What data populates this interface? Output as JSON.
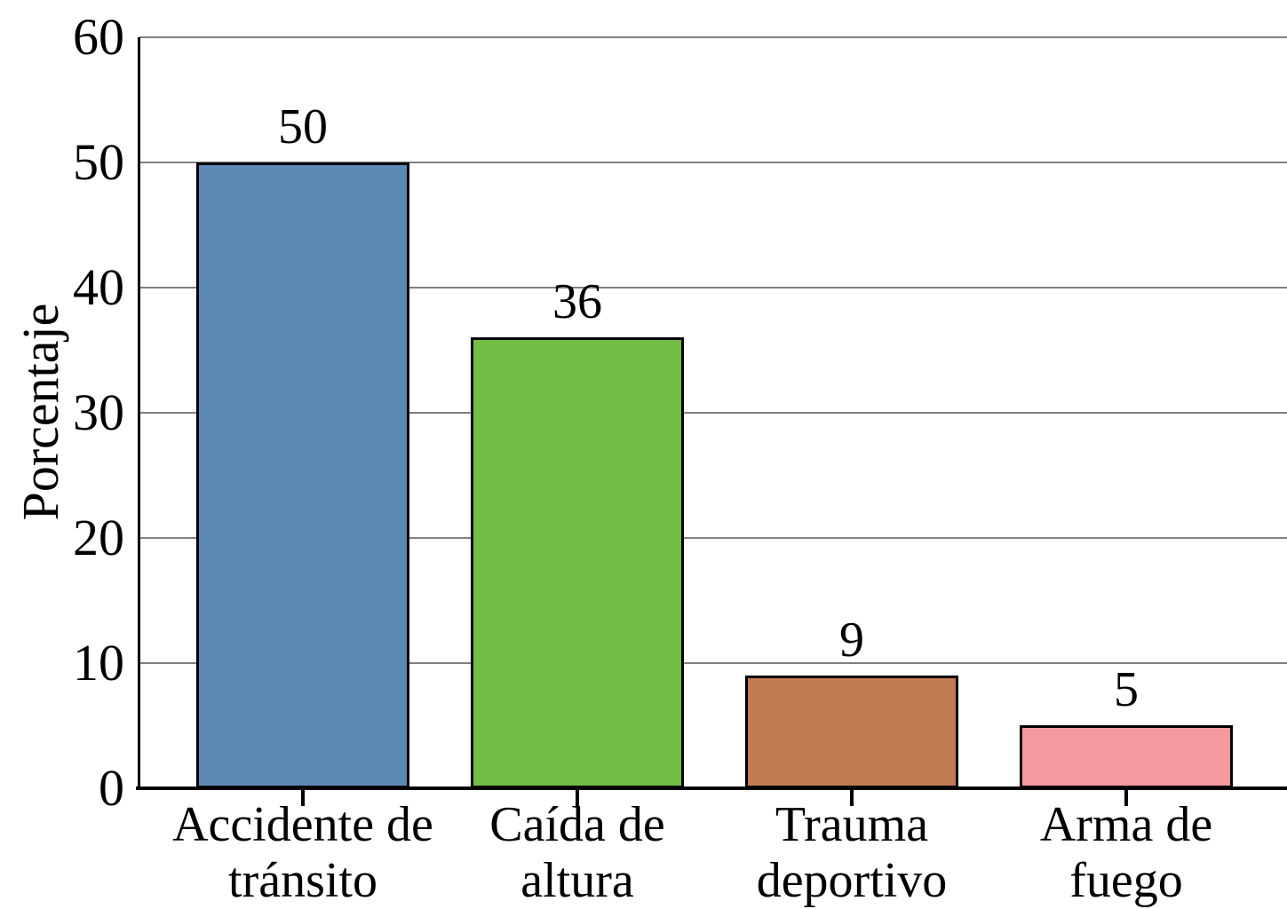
{
  "chart_data": {
    "type": "bar",
    "title": "",
    "xlabel": "",
    "ylabel": "Porcentaje",
    "categories": [
      "Accidente de tránsito",
      "Caída de altura",
      "Trauma deportivo",
      "Arma de fuego"
    ],
    "category_lines": [
      [
        "Accidente de",
        "tránsito"
      ],
      [
        "Caída de",
        "altura"
      ],
      [
        "Trauma",
        "deportivo"
      ],
      [
        "Arma de",
        "fuego"
      ]
    ],
    "values": [
      50,
      36,
      9,
      5
    ],
    "bar_colors": [
      "#5b89b4",
      "#72bd43",
      "#c17a52",
      "#f49a9e"
    ],
    "ylim": [
      0,
      60
    ],
    "yticks": [
      0,
      10,
      20,
      30,
      40,
      50,
      60
    ],
    "grid": true,
    "gridline_color": "#808080",
    "axis_color": "#000000",
    "text_color": "#000000",
    "background_color": "#ffffff",
    "legend": null
  }
}
